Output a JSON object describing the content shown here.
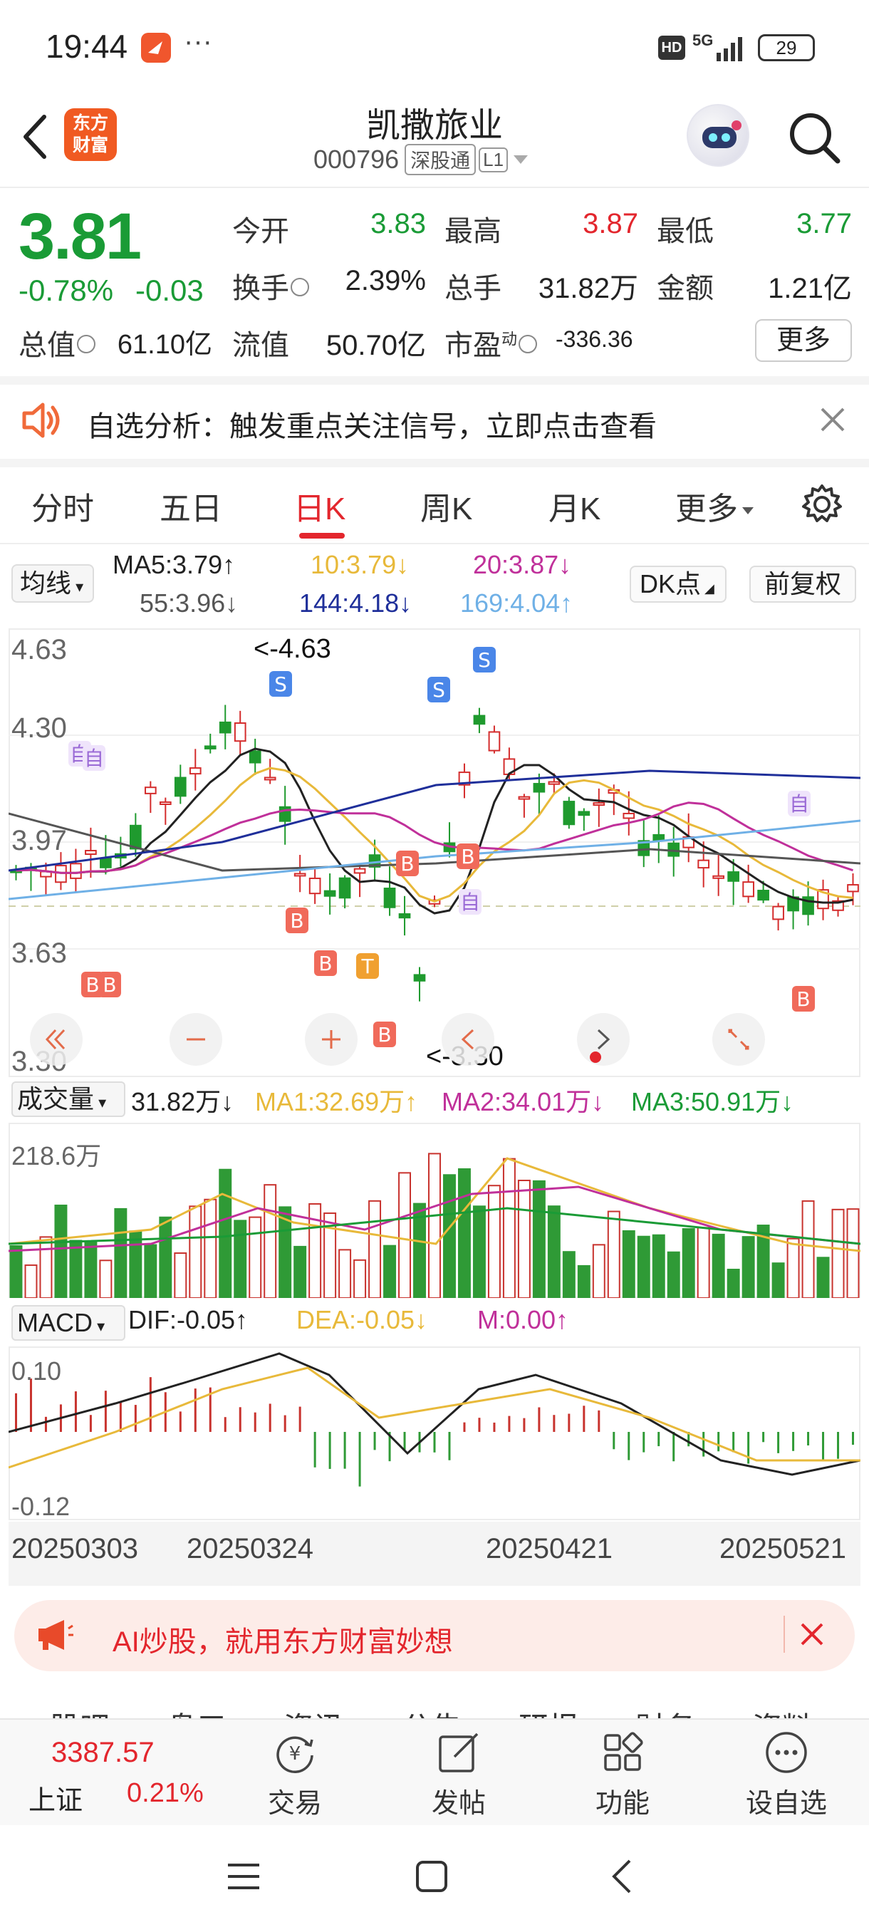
{
  "status_bar": {
    "time": "19:44",
    "dots": "···",
    "hd": "HD",
    "network": "5G",
    "battery": "29"
  },
  "header": {
    "logo_line1": "东方",
    "logo_line2": "财富",
    "stock_name": "凯撒旅业",
    "stock_code": "000796",
    "market_tag": "深股通",
    "level_tag": "L1"
  },
  "quote": {
    "price": "3.81",
    "change_pct": "-0.78%",
    "change_abs": "-0.03",
    "rows": [
      [
        {
          "label": "今开",
          "value": "3.83",
          "color": "green"
        },
        {
          "label": "最高",
          "value": "3.87",
          "color": "red"
        },
        {
          "label": "最低",
          "value": "3.77",
          "color": "green"
        }
      ],
      [
        {
          "label": "换手",
          "value": "2.39%",
          "color": "dark"
        },
        {
          "label": "总手",
          "value": "31.82万",
          "color": "dark"
        },
        {
          "label": "金额",
          "value": "1.21亿",
          "color": "dark"
        }
      ]
    ],
    "total_value_label": "总值",
    "total_value": "61.10亿",
    "float_value_label": "流值",
    "float_value": "50.70亿",
    "pe_label": "市盈",
    "pe_sup": "动",
    "pe_value": "-336.36",
    "more_label": "更多"
  },
  "notice": {
    "text": "自选分析：触发重点关注信号，立即点击查看"
  },
  "tabs": {
    "items": [
      "分时",
      "五日",
      "日K",
      "周K",
      "月K",
      "更多"
    ],
    "active": "日K"
  },
  "ma_legend": {
    "select_label": "均线",
    "items": [
      {
        "text": "MA5:3.79↑",
        "color": "#222222"
      },
      {
        "text": "10:3.79↓",
        "color": "#e8b93a"
      },
      {
        "text": "20:3.87↓",
        "color": "#c0309a"
      },
      {
        "text": "55:3.96↓",
        "color": "#555555"
      },
      {
        "text": "144:4.18↓",
        "color": "#1f2f9a"
      },
      {
        "text": "169:4.04↑",
        "color": "#6fb0e6"
      }
    ],
    "dk_label": "DK点",
    "fq_label": "前复权"
  },
  "kline": {
    "y_labels": [
      "4.63",
      "4.30",
      "3.97",
      "3.63",
      "3.30"
    ],
    "high_annot": "<-4.63",
    "low_annot": "<-3.30",
    "signal_labels": {
      "buy": "B",
      "sell": "S",
      "self": "自",
      "t": "T"
    }
  },
  "volume": {
    "select_label": "成交量",
    "items": [
      {
        "text": "31.82万↓",
        "color": "#222222"
      },
      {
        "text": "MA1:32.69万↑",
        "color": "#e8b93a"
      },
      {
        "text": "MA2:34.01万↓",
        "color": "#c0309a"
      },
      {
        "text": "MA3:50.91万↓",
        "color": "#1a9b36"
      }
    ],
    "y_label": "218.6万"
  },
  "macd": {
    "select_label": "MACD",
    "items": [
      {
        "text": "DIF:-0.05↑",
        "color": "#222222"
      },
      {
        "text": "DEA:-0.05↓",
        "color": "#e8b93a"
      },
      {
        "text": "M:0.00↑",
        "color": "#c0309a"
      }
    ],
    "y_top": "0.10",
    "y_bottom": "-0.12"
  },
  "dates": [
    "20250303",
    "20250324",
    "20250421",
    "20250521"
  ],
  "ad": {
    "text": "AI炒股，就用东方财富妙想"
  },
  "sub_tabs_peek": [
    "股吧",
    "盘口",
    "资讯",
    "公告",
    "研报",
    "财务",
    "资料"
  ],
  "bottom_bar": {
    "index_value": "3387.57",
    "index_name": "上证",
    "index_pct": "0.21%",
    "items": [
      {
        "label": "交易",
        "icon": "trade-icon"
      },
      {
        "label": "发帖",
        "icon": "edit-icon"
      },
      {
        "label": "功能",
        "icon": "grid-icon"
      },
      {
        "label": "设自选",
        "icon": "more-circle-icon"
      }
    ]
  }
}
